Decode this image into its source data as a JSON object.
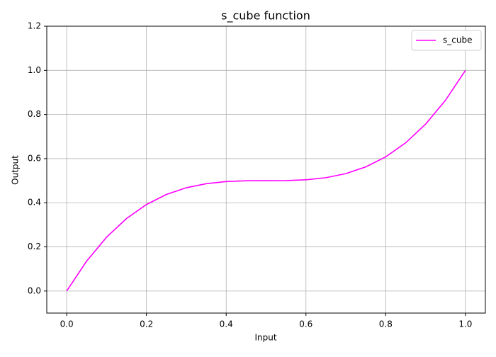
{
  "chart_data": {
    "type": "line",
    "title": "s_cube function",
    "x_label": "Input",
    "y_label": "Output",
    "x": [
      0,
      0.05,
      0.1,
      0.15,
      0.2,
      0.25,
      0.3,
      0.35,
      0.4,
      0.45,
      0.5,
      0.55,
      0.6,
      0.65,
      0.7,
      0.75,
      0.8,
      0.85,
      0.9,
      0.95,
      1
    ],
    "series": [
      {
        "name": "s_cube",
        "color": "#ff00ff",
        "values": [
          0,
          0.1355,
          0.244,
          0.3285,
          0.392,
          0.4375,
          0.468,
          0.4865,
          0.496,
          0.4995,
          0.5,
          0.5005,
          0.504,
          0.5135,
          0.532,
          0.5625,
          0.608,
          0.6715,
          0.756,
          0.8645,
          1
        ]
      }
    ],
    "xlim": [
      -0.05,
      1.05
    ],
    "ylim": [
      -0.1,
      1.2
    ],
    "xticks": [
      {
        "value": 0,
        "label": "0.0"
      },
      0.2,
      0.4,
      0.6,
      0.8,
      {
        "value": 1,
        "label": "1.0"
      }
    ],
    "yticks": [
      {
        "value": 0,
        "label": "0.0"
      },
      0.2,
      0.4,
      0.6,
      0.8,
      {
        "value": 1,
        "label": "1.0"
      },
      1.2
    ],
    "grid": true,
    "legend": "upper right"
  }
}
